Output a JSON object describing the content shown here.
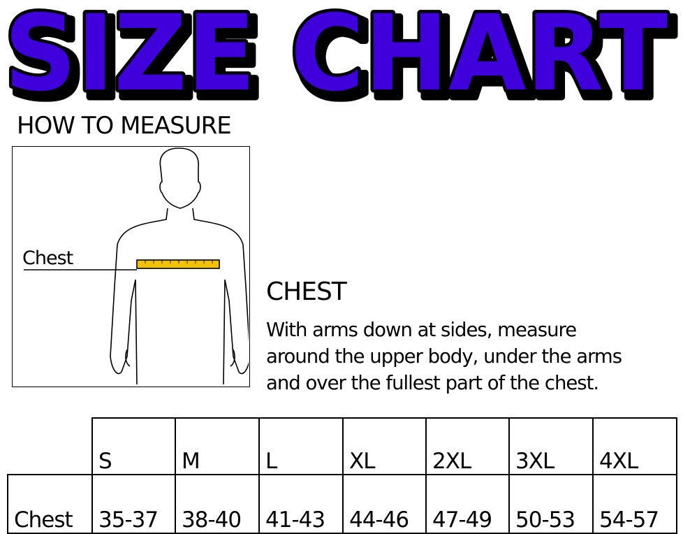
{
  "title": "SIZE CHART",
  "colors": {
    "title_fill": "#3f00dc",
    "tape": "#f2c200"
  },
  "how_to_measure": "HOW TO MEASURE",
  "figure_label": "Chest",
  "instructions": {
    "heading": "CHEST",
    "lines": [
      "With arms down at sides, measure",
      "around the upper body, under the arms",
      "and over the fullest part of the chest."
    ]
  },
  "table": {
    "sizes": [
      "S",
      "M",
      "L",
      "XL",
      "2XL",
      "3XL",
      "4XL"
    ],
    "rows": [
      {
        "label": "Chest",
        "values": [
          "35-37",
          "38-40",
          "41-43",
          "44-46",
          "47-49",
          "50-53",
          "54-57"
        ]
      }
    ]
  }
}
